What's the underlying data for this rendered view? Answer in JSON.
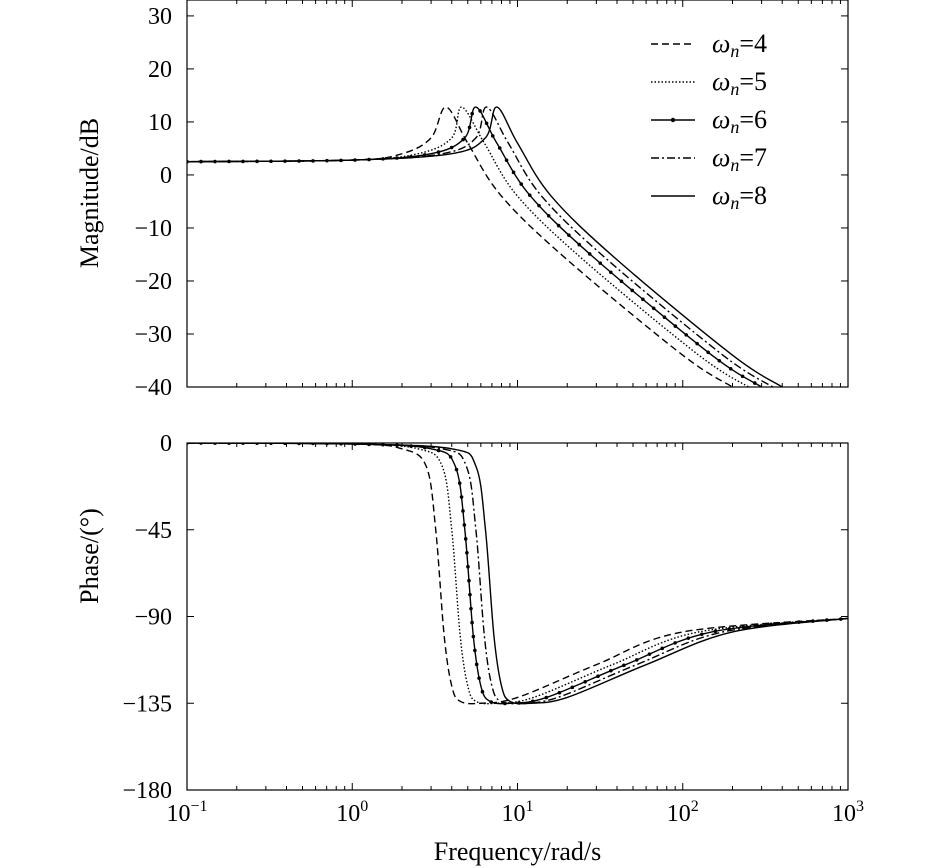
{
  "chart_data": [
    {
      "type": "line",
      "panel": "magnitude",
      "ylabel": "Magnitude/dB",
      "xlabel": "",
      "xscale": "log",
      "xlim": [
        0.1,
        1000
      ],
      "ylim": [
        -40,
        33
      ],
      "yticks": [
        30,
        20,
        10,
        0,
        -10,
        -20,
        -30,
        -40
      ],
      "ytick_labels": [
        "30",
        "20",
        "10",
        "0",
        "−10",
        "−20",
        "−30",
        "−40"
      ],
      "grid": false,
      "legend_position": "top-right",
      "legend_symbol": "ω",
      "legend_subscript": "n",
      "series": [
        {
          "name": "ωn=4",
          "omega_n": 4,
          "label_prefix": "=",
          "label_value": "4",
          "style": "dashed",
          "x": [
            0.1,
            1,
            2,
            3,
            3.7,
            5,
            8,
            20,
            100,
            200
          ],
          "y": [
            2.5,
            2.8,
            4.0,
            7.0,
            12.8,
            6.0,
            -4.0,
            -16.0,
            -34.0,
            -40.0
          ]
        },
        {
          "name": "ωn=5",
          "omega_n": 5,
          "label_prefix": "=",
          "label_value": "5",
          "style": "dotted",
          "x": [
            0.1,
            1,
            2.5,
            4,
            4.6,
            6.3,
            10,
            25,
            125,
            250
          ],
          "y": [
            2.5,
            2.8,
            4.0,
            7.0,
            12.8,
            6.0,
            -4.0,
            -16.0,
            -34.0,
            -40.0
          ]
        },
        {
          "name": "ωn=6",
          "omega_n": 6,
          "label_prefix": "=",
          "label_value": "6",
          "style": "solid-dotted",
          "x": [
            0.1,
            1,
            3,
            4.8,
            5.6,
            7.5,
            12,
            30,
            150,
            300
          ],
          "y": [
            2.5,
            2.8,
            4.0,
            7.0,
            12.8,
            6.0,
            -4.0,
            -16.0,
            -34.0,
            -40.0
          ]
        },
        {
          "name": "ωn=7",
          "omega_n": 7,
          "label_prefix": "=",
          "label_value": "7",
          "style": "dash-dot",
          "x": [
            0.1,
            1,
            3.5,
            5.6,
            6.5,
            8.8,
            14,
            35,
            175,
            350
          ],
          "y": [
            2.5,
            2.8,
            4.0,
            7.0,
            12.8,
            6.0,
            -4.0,
            -16.0,
            -34.0,
            -40.0
          ]
        },
        {
          "name": "ωn=8",
          "omega_n": 8,
          "label_prefix": "=",
          "label_value": "8",
          "style": "solid",
          "x": [
            0.1,
            1,
            4,
            6.4,
            7.5,
            10,
            16,
            40,
            200,
            400
          ],
          "y": [
            2.5,
            2.8,
            4.0,
            7.0,
            12.8,
            6.0,
            -4.0,
            -16.0,
            -34.0,
            -40.0
          ]
        }
      ]
    },
    {
      "type": "line",
      "panel": "phase",
      "ylabel": "Phase/(°)",
      "xlabel": "Frequency/rad/s",
      "xscale": "log",
      "xlim": [
        0.1,
        1000
      ],
      "ylim": [
        -180,
        0
      ],
      "yticks": [
        0,
        -45,
        -90,
        -135,
        -180
      ],
      "ytick_labels": [
        "0",
        "−45",
        "−90",
        "−135",
        "−180"
      ],
      "xticks": [
        0.1,
        1,
        10,
        100,
        1000
      ],
      "xtick_labels": [
        {
          "base": "10",
          "exp": "−1"
        },
        {
          "base": "10",
          "exp": "0"
        },
        {
          "base": "10",
          "exp": "1"
        },
        {
          "base": "10",
          "exp": "2"
        },
        {
          "base": "10",
          "exp": "3"
        }
      ],
      "grid": false,
      "series": [
        {
          "name": "ωn=4",
          "style": "dashed",
          "x": [
            0.1,
            1,
            2,
            2.8,
            3.2,
            3.6,
            4.0,
            4.5,
            6,
            10,
            30,
            100,
            1000
          ],
          "y": [
            0,
            -0.5,
            -3,
            -12,
            -45,
            -100,
            -126,
            -134,
            -135,
            -132,
            -115,
            -98,
            -91
          ]
        },
        {
          "name": "ωn=5",
          "style": "dotted",
          "x": [
            0.1,
            1,
            2.5,
            3.5,
            4,
            4.5,
            5,
            5.6,
            7.5,
            12.5,
            37.5,
            125,
            1000
          ],
          "y": [
            0,
            -0.5,
            -3,
            -12,
            -45,
            -100,
            -126,
            -134,
            -135,
            -132,
            -115,
            -98,
            -91
          ]
        },
        {
          "name": "ωn=6",
          "style": "solid-dotted",
          "x": [
            0.1,
            1,
            3,
            4.2,
            4.8,
            5.4,
            6,
            6.8,
            9,
            15,
            45,
            150,
            1000
          ],
          "y": [
            0,
            -0.5,
            -3,
            -12,
            -45,
            -100,
            -126,
            -134,
            -135,
            -132,
            -115,
            -98,
            -91
          ]
        },
        {
          "name": "ωn=7",
          "style": "dash-dot",
          "x": [
            0.1,
            1,
            3.5,
            4.9,
            5.6,
            6.3,
            7,
            7.9,
            10.5,
            17.5,
            52.5,
            175,
            1000
          ],
          "y": [
            0,
            -0.5,
            -3,
            -12,
            -45,
            -100,
            -126,
            -134,
            -135,
            -132,
            -115,
            -98,
            -91
          ]
        },
        {
          "name": "ωn=8",
          "style": "solid",
          "x": [
            0.1,
            1,
            4,
            5.6,
            6.4,
            7.2,
            8,
            9,
            12,
            20,
            60,
            200,
            1000
          ],
          "y": [
            0,
            -0.5,
            -3,
            -12,
            -45,
            -100,
            -126,
            -134,
            -135,
            -132,
            -115,
            -98,
            -91
          ]
        }
      ]
    }
  ]
}
